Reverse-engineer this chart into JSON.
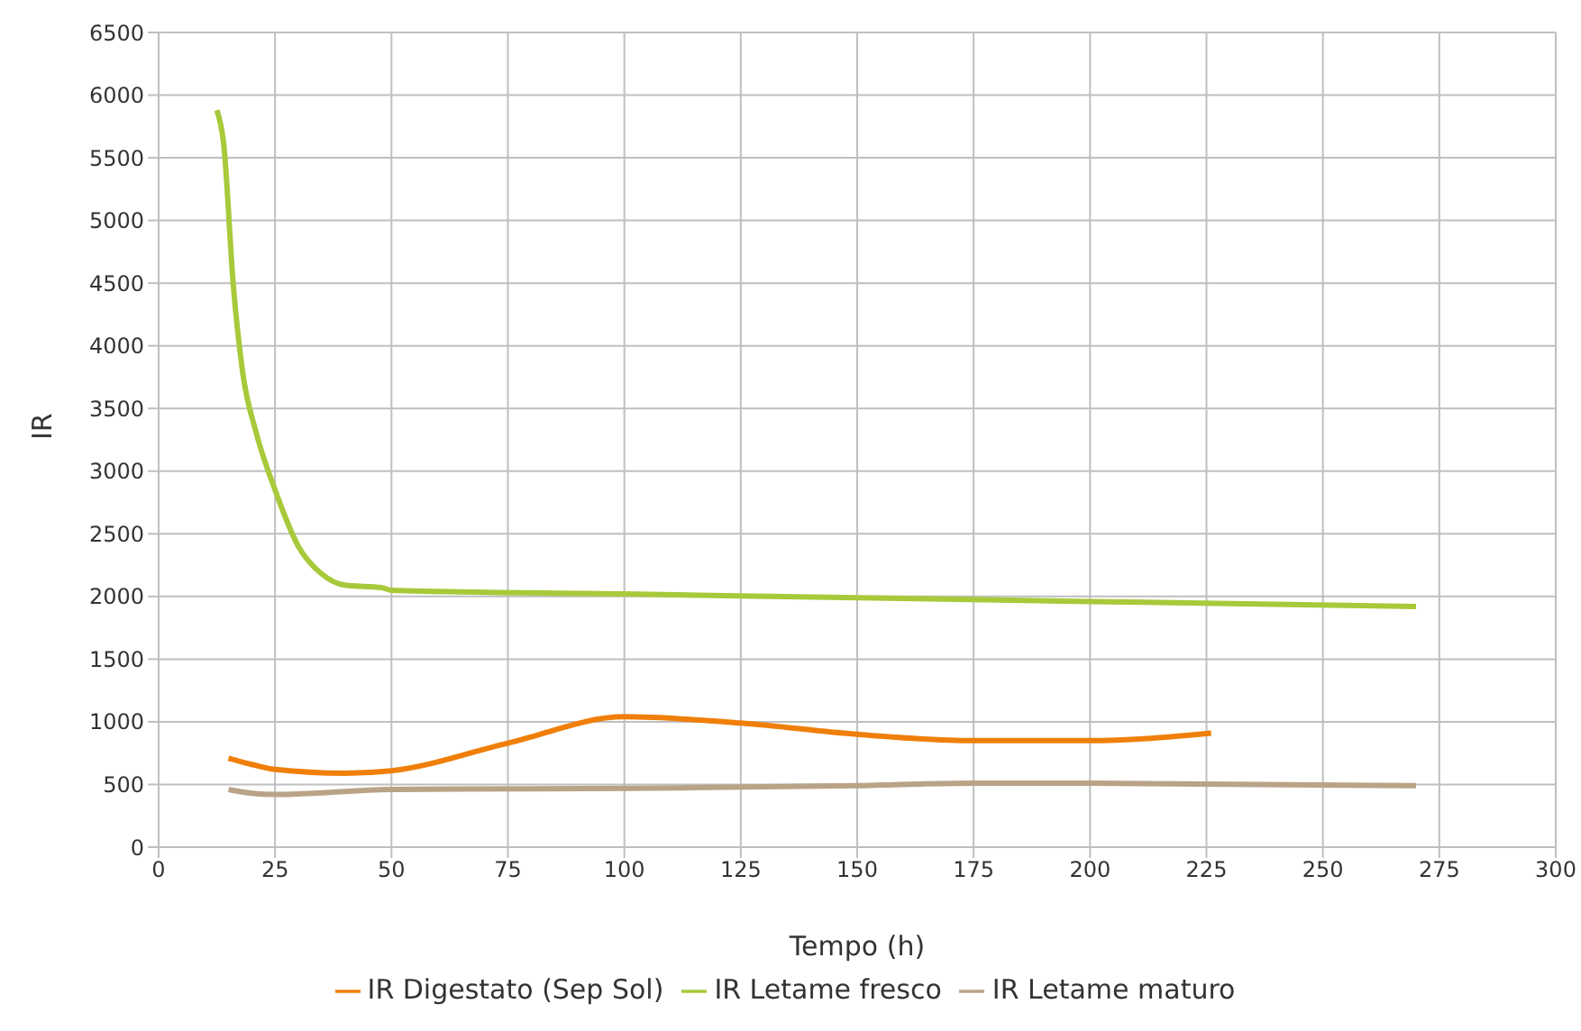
{
  "chart_data": {
    "type": "line",
    "xlabel": "Tempo (h)",
    "ylabel": "IR",
    "xlim": [
      0,
      300
    ],
    "xticks": [
      0,
      25,
      50,
      75,
      100,
      125,
      150,
      175,
      200,
      225,
      250,
      275,
      300
    ],
    "ylim": [
      0,
      6500
    ],
    "yticks": [
      0,
      500,
      1000,
      1500,
      2000,
      2500,
      3000,
      3500,
      4000,
      4500,
      5000,
      5500,
      6000,
      6500
    ],
    "grid": true,
    "legend": "bottom",
    "marker": "none",
    "line_style": "solid",
    "series": [
      {
        "name": "IR Letame fresco",
        "color": "#a8c93a",
        "x": [
          12.5,
          14,
          16,
          18,
          21,
          25,
          30,
          35,
          40,
          48,
          50,
          100,
          150,
          200,
          270
        ],
        "values": [
          5880,
          5600,
          4500,
          3800,
          3300,
          2850,
          2400,
          2180,
          2090,
          2070,
          2050,
          2020,
          1990,
          1960,
          1920
        ]
      },
      {
        "name": "IR Digestato (Sep Sol)",
        "color": "#f07f09",
        "x": [
          15,
          20,
          25,
          40,
          50,
          75,
          100,
          125,
          150,
          175,
          200,
          226
        ],
        "values": [
          710,
          660,
          620,
          590,
          610,
          830,
          1040,
          990,
          900,
          850,
          850,
          910
        ]
      },
      {
        "name": "IR Letame maturo",
        "color": "#b9a386",
        "x": [
          15,
          20,
          25,
          50,
          100,
          150,
          175,
          200,
          270
        ],
        "values": [
          460,
          430,
          420,
          460,
          470,
          490,
          510,
          510,
          490
        ]
      }
    ]
  }
}
